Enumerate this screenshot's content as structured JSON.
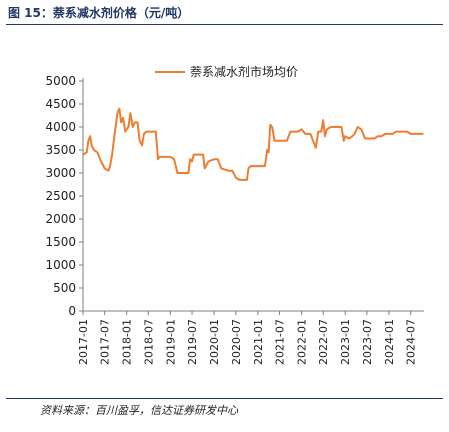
{
  "figure_title": "图 15：萘系减水剂价格（元/吨）",
  "source_note": "资料来源：百川盈孚，信达证券研发中心",
  "colors": {
    "series": "#ED7D31",
    "title": "#1f3864",
    "axis": "#7f7f7f"
  },
  "chart_data": {
    "type": "line",
    "title": "",
    "xlabel": "",
    "ylabel": "",
    "ylim": [
      0,
      5000
    ],
    "y_ticks": [
      0,
      500,
      1000,
      1500,
      2000,
      2500,
      3000,
      3500,
      4000,
      4500,
      5000
    ],
    "x_ticks": [
      "2017-01",
      "2017-07",
      "2018-01",
      "2018-07",
      "2019-01",
      "2019-07",
      "2020-01",
      "2020-07",
      "2021-01",
      "2021-07",
      "2022-01",
      "2022-07",
      "2023-01",
      "2023-07",
      "2024-01",
      "2024-07"
    ],
    "legend": "top-center",
    "grid": false,
    "series": [
      {
        "name": "萘系减水剂市场均价",
        "points": [
          [
            "2017-01-01",
            3400
          ],
          [
            "2017-02-01",
            3450
          ],
          [
            "2017-02-15",
            3700
          ],
          [
            "2017-03-01",
            3800
          ],
          [
            "2017-03-15",
            3600
          ],
          [
            "2017-04-01",
            3500
          ],
          [
            "2017-05-01",
            3450
          ],
          [
            "2017-06-01",
            3250
          ],
          [
            "2017-07-01",
            3100
          ],
          [
            "2017-08-01",
            3050
          ],
          [
            "2017-08-15",
            3150
          ],
          [
            "2017-09-01",
            3400
          ],
          [
            "2017-09-20",
            3800
          ],
          [
            "2017-10-15",
            4300
          ],
          [
            "2017-11-01",
            4400
          ],
          [
            "2017-11-15",
            4100
          ],
          [
            "2017-12-01",
            4200
          ],
          [
            "2017-12-20",
            3900
          ],
          [
            "2018-01-15",
            4000
          ],
          [
            "2018-02-01",
            4300
          ],
          [
            "2018-02-20",
            4000
          ],
          [
            "2018-03-10",
            4100
          ],
          [
            "2018-04-01",
            4100
          ],
          [
            "2018-04-20",
            3700
          ],
          [
            "2018-05-10",
            3600
          ],
          [
            "2018-05-25",
            3850
          ],
          [
            "2018-06-15",
            3900
          ],
          [
            "2018-08-01",
            3900
          ],
          [
            "2018-09-01",
            3900
          ],
          [
            "2018-09-20",
            3300
          ],
          [
            "2018-10-01",
            3350
          ],
          [
            "2018-12-01",
            3350
          ],
          [
            "2019-01-01",
            3350
          ],
          [
            "2019-02-01",
            3300
          ],
          [
            "2019-03-01",
            3000
          ],
          [
            "2019-06-01",
            3000
          ],
          [
            "2019-06-15",
            3300
          ],
          [
            "2019-07-01",
            3250
          ],
          [
            "2019-07-15",
            3400
          ],
          [
            "2019-10-01",
            3400
          ],
          [
            "2019-10-15",
            3100
          ],
          [
            "2019-11-15",
            3250
          ],
          [
            "2020-01-01",
            3300
          ],
          [
            "2020-02-01",
            3300
          ],
          [
            "2020-03-01",
            3100
          ],
          [
            "2020-05-01",
            3050
          ],
          [
            "2020-06-01",
            3050
          ],
          [
            "2020-07-01",
            2900
          ],
          [
            "2020-08-01",
            2850
          ],
          [
            "2020-09-01",
            2850
          ],
          [
            "2020-10-01",
            2850
          ],
          [
            "2020-10-15",
            3100
          ],
          [
            "2020-11-01",
            3150
          ],
          [
            "2021-01-01",
            3150
          ],
          [
            "2021-03-01",
            3150
          ],
          [
            "2021-03-20",
            3500
          ],
          [
            "2021-04-01",
            3450
          ],
          [
            "2021-04-15",
            4050
          ],
          [
            "2021-05-01",
            4000
          ],
          [
            "2021-05-20",
            3700
          ],
          [
            "2021-09-01",
            3700
          ],
          [
            "2021-09-15",
            3800
          ],
          [
            "2021-10-01",
            3900
          ],
          [
            "2021-12-01",
            3900
          ],
          [
            "2022-01-01",
            3950
          ],
          [
            "2022-02-01",
            3850
          ],
          [
            "2022-03-15",
            3850
          ],
          [
            "2022-05-01",
            3550
          ],
          [
            "2022-05-20",
            3900
          ],
          [
            "2022-06-15",
            3900
          ],
          [
            "2022-07-01",
            4150
          ],
          [
            "2022-07-15",
            3800
          ],
          [
            "2022-08-01",
            3950
          ],
          [
            "2022-09-01",
            4000
          ],
          [
            "2022-12-01",
            4000
          ],
          [
            "2022-12-20",
            3700
          ],
          [
            "2023-01-01",
            3800
          ],
          [
            "2023-02-01",
            3750
          ],
          [
            "2023-03-01",
            3800
          ],
          [
            "2023-03-20",
            3850
          ],
          [
            "2023-04-15",
            4000
          ],
          [
            "2023-05-15",
            3950
          ],
          [
            "2023-06-15",
            3750
          ],
          [
            "2023-07-15",
            3750
          ],
          [
            "2023-09-01",
            3750
          ],
          [
            "2023-10-01",
            3800
          ],
          [
            "2023-11-01",
            3800
          ],
          [
            "2023-12-01",
            3850
          ],
          [
            "2024-02-01",
            3850
          ],
          [
            "2024-03-01",
            3900
          ],
          [
            "2024-06-01",
            3900
          ],
          [
            "2024-07-01",
            3850
          ],
          [
            "2024-09-01",
            3850
          ],
          [
            "2024-10-15",
            3850
          ]
        ]
      }
    ]
  }
}
